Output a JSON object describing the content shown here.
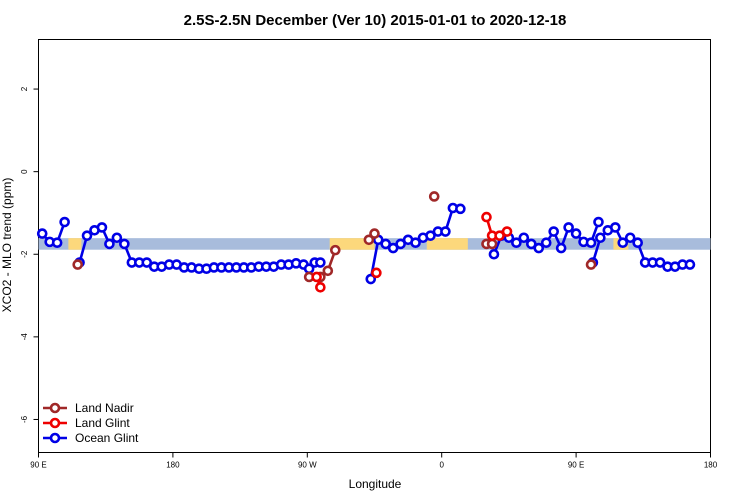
{
  "chart_data": {
    "type": "line",
    "title": "2.5S-2.5N December (Ver 10)   2015-01-01 to 2020-12-18",
    "xlabel": "Longitude",
    "ylabel": "XCO2 - MLO trend (ppm)",
    "xlim": [
      90,
      270
    ],
    "ylim": [
      -6.8,
      3.2
    ],
    "x_ticks": [
      {
        "value": 90,
        "label": "90 E"
      },
      {
        "value": 126,
        "label": "180"
      },
      {
        "value": 162,
        "label": "90 W"
      },
      {
        "value": 198,
        "label": "0"
      },
      {
        "value": 234,
        "label": "90 E"
      },
      {
        "value": 270,
        "label": "180"
      }
    ],
    "y_ticks": [
      {
        "value": 2,
        "label": "2"
      },
      {
        "value": 0,
        "label": "0"
      },
      {
        "value": -2,
        "label": "-2"
      },
      {
        "value": -4,
        "label": "-4"
      },
      {
        "value": -6,
        "label": "-6"
      }
    ],
    "band": {
      "y": -1.75,
      "half_width": 0.14,
      "color": "#a8bcdc",
      "land_segments": [
        [
          98,
          101.5
        ],
        [
          168,
          180
        ],
        [
          194,
          205
        ],
        [
          244,
          248
        ]
      ],
      "land_color": "#fcd87c"
    },
    "legend_position": "bottom-left",
    "series": [
      {
        "name": "Land Nadir",
        "color": "#a02828",
        "segments": [
          [
            [
              100.5,
              -2.25
            ]
          ],
          [
            [
              162.5,
              -2.55
            ]
          ],
          [
            [
              165.5,
              -2.55
            ],
            [
              167.5,
              -2.4
            ],
            [
              169.5,
              -1.9
            ]
          ],
          [
            [
              178.5,
              -1.65
            ],
            [
              180,
              -1.5
            ]
          ],
          [
            [
              196,
              -0.6
            ]
          ],
          [
            [
              210,
              -1.75
            ],
            [
              211.5,
              -1.75
            ]
          ],
          [
            [
              238,
              -2.25
            ]
          ]
        ]
      },
      {
        "name": "Land Glint",
        "color": "#ee0000",
        "segments": [
          [
            [
              164.5,
              -2.55
            ],
            [
              165.5,
              -2.8
            ]
          ],
          [
            [
              180.5,
              -2.45
            ]
          ],
          [
            [
              210,
              -1.1
            ],
            [
              211.5,
              -1.55
            ],
            [
              213.5,
              -1.55
            ],
            [
              215.5,
              -1.45
            ]
          ]
        ]
      },
      {
        "name": "Ocean Glint",
        "color": "#0000e6",
        "segments": [
          [
            [
              91,
              -1.5
            ],
            [
              93,
              -1.7
            ],
            [
              95,
              -1.72
            ],
            [
              97,
              -1.22
            ]
          ],
          [
            [
              101,
              -2.2
            ],
            [
              103,
              -1.55
            ],
            [
              105,
              -1.42
            ],
            [
              107,
              -1.35
            ],
            [
              109,
              -1.75
            ],
            [
              111,
              -1.6
            ],
            [
              113,
              -1.75
            ],
            [
              115,
              -2.2
            ],
            [
              117,
              -2.2
            ],
            [
              119,
              -2.2
            ],
            [
              121,
              -2.3
            ],
            [
              123,
              -2.3
            ],
            [
              125,
              -2.25
            ],
            [
              127,
              -2.25
            ],
            [
              129,
              -2.32
            ],
            [
              131,
              -2.32
            ],
            [
              133,
              -2.35
            ],
            [
              135,
              -2.35
            ],
            [
              137,
              -2.32
            ],
            [
              139,
              -2.32
            ],
            [
              141,
              -2.32
            ],
            [
              143,
              -2.32
            ],
            [
              145,
              -2.32
            ],
            [
              147,
              -2.32
            ],
            [
              149,
              -2.3
            ],
            [
              151,
              -2.3
            ],
            [
              153,
              -2.3
            ],
            [
              155,
              -2.25
            ],
            [
              157,
              -2.25
            ],
            [
              159,
              -2.22
            ],
            [
              161,
              -2.25
            ],
            [
              162.5,
              -2.35
            ],
            [
              164,
              -2.2
            ],
            [
              165.5,
              -2.2
            ]
          ],
          [
            [
              179,
              -2.6
            ],
            [
              181,
              -1.65
            ],
            [
              183,
              -1.75
            ],
            [
              185,
              -1.85
            ],
            [
              187,
              -1.75
            ],
            [
              189,
              -1.65
            ],
            [
              191,
              -1.72
            ],
            [
              193,
              -1.6
            ],
            [
              195,
              -1.55
            ],
            [
              197,
              -1.45
            ],
            [
              199,
              -1.45
            ],
            [
              201,
              -0.88
            ],
            [
              203,
              -0.9
            ]
          ],
          [
            [
              212,
              -2.0
            ],
            [
              214,
              -1.55
            ],
            [
              216,
              -1.6
            ],
            [
              218,
              -1.72
            ],
            [
              220,
              -1.6
            ],
            [
              222,
              -1.75
            ],
            [
              224,
              -1.85
            ],
            [
              226,
              -1.72
            ],
            [
              228,
              -1.45
            ],
            [
              230,
              -1.85
            ],
            [
              232,
              -1.35
            ],
            [
              234,
              -1.5
            ],
            [
              236,
              -1.7
            ],
            [
              238,
              -1.72
            ],
            [
              240,
              -1.22
            ]
          ],
          [
            [
              238.5,
              -2.2
            ],
            [
              240.5,
              -1.6
            ],
            [
              242.5,
              -1.42
            ],
            [
              244.5,
              -1.35
            ],
            [
              246.5,
              -1.72
            ],
            [
              248.5,
              -1.6
            ],
            [
              250.5,
              -1.72
            ],
            [
              252.5,
              -2.2
            ],
            [
              254.5,
              -2.2
            ],
            [
              256.5,
              -2.2
            ],
            [
              258.5,
              -2.3
            ],
            [
              260.5,
              -2.3
            ],
            [
              262.5,
              -2.25
            ],
            [
              264.5,
              -2.25
            ]
          ]
        ]
      }
    ]
  }
}
